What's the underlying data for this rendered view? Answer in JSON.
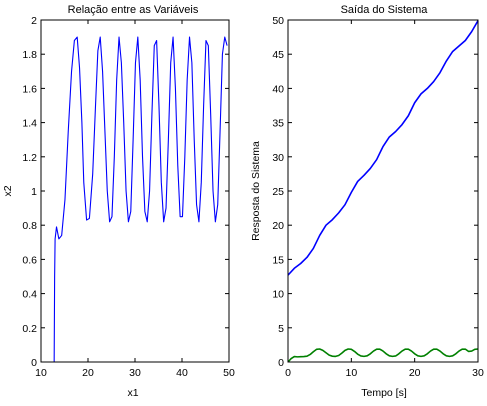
{
  "chart_data": [
    {
      "type": "line",
      "title": "Relação entre as Variáveis",
      "xlabel": "x1",
      "ylabel": "x2",
      "xlim": [
        10,
        50
      ],
      "ylim": [
        0,
        2
      ],
      "x_ticks": [
        10,
        20,
        30,
        40,
        50
      ],
      "y_ticks": [
        0,
        0.2,
        0.4,
        0.6,
        0.8,
        1,
        1.2,
        1.4,
        1.6,
        1.8,
        2
      ],
      "grid": false,
      "series": [
        {
          "color": "#0000ff",
          "x": [
            12.8,
            12.9,
            13.0,
            13.3,
            13.8,
            14.4,
            15.1,
            15.8,
            16.5,
            17.1,
            17.7,
            18.2,
            18.7,
            19.1,
            19.7,
            20.3,
            21.0,
            21.6,
            22.1,
            22.6,
            23.1,
            23.6,
            24.1,
            24.6,
            25.1,
            25.6,
            26.1,
            26.6,
            27.1,
            27.6,
            28.1,
            28.6,
            29.1,
            29.6,
            30.1,
            30.6,
            31.1,
            31.6,
            32.1,
            32.6,
            33.1,
            33.6,
            34.1,
            34.6,
            35.1,
            35.6,
            36.1,
            36.6,
            37.1,
            37.6,
            38.1,
            38.6,
            39.1,
            39.6,
            40.1,
            40.6,
            41.1,
            41.6,
            42.1,
            42.6,
            43.1,
            43.6,
            44.1,
            44.6,
            45.1,
            45.6,
            46.1,
            46.6,
            47.1,
            47.6,
            48.1,
            48.6,
            49.1,
            49.6
          ],
          "y": [
            0.0,
            0.5,
            0.72,
            0.79,
            0.72,
            0.74,
            0.95,
            1.35,
            1.7,
            1.88,
            1.9,
            1.72,
            1.4,
            1.05,
            0.83,
            0.84,
            1.1,
            1.5,
            1.82,
            1.9,
            1.7,
            1.35,
            1.0,
            0.82,
            0.85,
            1.2,
            1.65,
            1.9,
            1.75,
            1.4,
            1.0,
            0.82,
            0.88,
            1.3,
            1.75,
            1.9,
            1.65,
            1.2,
            0.88,
            0.82,
            1.0,
            1.45,
            1.85,
            1.88,
            1.5,
            1.05,
            0.82,
            0.9,
            1.3,
            1.75,
            1.9,
            1.6,
            1.15,
            0.85,
            0.85,
            1.2,
            1.65,
            1.9,
            1.75,
            1.3,
            0.92,
            0.82,
            1.05,
            1.5,
            1.88,
            1.85,
            1.45,
            1.0,
            0.82,
            0.92,
            1.35,
            1.8,
            1.9,
            1.85
          ]
        }
      ]
    },
    {
      "type": "line",
      "title": "Saída do Sistema",
      "xlabel": "Tempo [s]",
      "ylabel": "Resposta do Sistema",
      "xlim": [
        0,
        30
      ],
      "ylim": [
        0,
        50
      ],
      "x_ticks": [
        0,
        10,
        20,
        30
      ],
      "y_ticks": [
        0,
        5,
        10,
        15,
        20,
        25,
        30,
        35,
        40,
        45,
        50
      ],
      "grid": false,
      "series": [
        {
          "color": "#0000ff",
          "x": [
            0,
            1,
            2,
            3,
            4,
            5,
            6,
            7,
            8,
            9,
            10,
            11,
            12,
            13,
            14,
            15,
            16,
            17,
            18,
            19,
            20,
            21,
            22,
            23,
            24,
            25,
            26,
            27,
            28,
            29,
            30
          ],
          "y": [
            12.7,
            13.7,
            14.4,
            15.3,
            16.6,
            18.5,
            20.0,
            20.8,
            21.8,
            23.0,
            24.8,
            26.4,
            27.3,
            28.3,
            29.6,
            31.5,
            32.9,
            33.7,
            34.7,
            36.0,
            37.9,
            39.2,
            40.0,
            41.0,
            42.3,
            44.0,
            45.4,
            46.2,
            47.0,
            48.3,
            49.9
          ]
        },
        {
          "color": "#008000",
          "x": [
            0,
            0.5,
            1,
            1.5,
            2,
            2.5,
            3,
            3.5,
            4,
            4.5,
            5,
            5.5,
            6,
            6.5,
            7,
            7.5,
            8,
            8.5,
            9,
            9.5,
            10,
            10.5,
            11,
            11.5,
            12,
            12.5,
            13,
            13.5,
            14,
            14.5,
            15,
            15.5,
            16,
            16.5,
            17,
            17.5,
            18,
            18.5,
            19,
            19.5,
            20,
            20.5,
            21,
            21.5,
            22,
            22.5,
            23,
            23.5,
            24,
            24.5,
            25,
            25.5,
            26,
            26.5,
            27,
            27.5,
            28,
            28.5,
            29,
            29.5,
            30
          ],
          "y": [
            0.0,
            0.5,
            0.8,
            0.75,
            0.78,
            0.8,
            0.85,
            1.1,
            1.5,
            1.85,
            1.9,
            1.7,
            1.35,
            1.0,
            0.85,
            0.82,
            0.95,
            1.3,
            1.7,
            1.9,
            1.85,
            1.55,
            1.15,
            0.88,
            0.82,
            0.9,
            1.2,
            1.6,
            1.88,
            1.88,
            1.6,
            1.2,
            0.9,
            0.82,
            0.88,
            1.2,
            1.6,
            1.88,
            1.88,
            1.6,
            1.2,
            0.9,
            0.82,
            0.9,
            1.2,
            1.6,
            1.88,
            1.88,
            1.6,
            1.2,
            0.9,
            0.82,
            0.9,
            1.2,
            1.6,
            1.88,
            1.88,
            1.55,
            1.6,
            1.85,
            1.9
          ]
        }
      ]
    }
  ]
}
